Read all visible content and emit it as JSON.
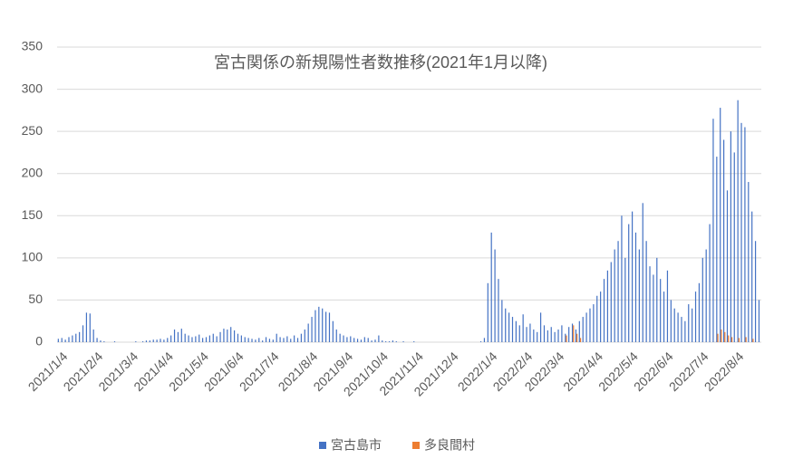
{
  "chart_data": {
    "type": "bar",
    "title": "宮古関係の新規陽性者数推移(2021年1月以降)",
    "categories": [
      null,
      "2021/1/4",
      null,
      null,
      null,
      null,
      null,
      null,
      null,
      null,
      null,
      "2021/2/4",
      null,
      null,
      null,
      null,
      null,
      null,
      null,
      null,
      null,
      "2021/3/4",
      null,
      null,
      null,
      null,
      null,
      null,
      null,
      null,
      null,
      "2021/4/4",
      null,
      null,
      null,
      null,
      null,
      null,
      null,
      null,
      null,
      "2021/5/4",
      null,
      null,
      null,
      null,
      null,
      null,
      null,
      null,
      null,
      "2021/6/4",
      null,
      null,
      null,
      null,
      null,
      null,
      null,
      null,
      null,
      "2021/7/4",
      null,
      null,
      null,
      null,
      null,
      null,
      null,
      null,
      null,
      null,
      "2021/8/4",
      null,
      null,
      null,
      null,
      null,
      null,
      null,
      null,
      null,
      "2021/9/4",
      null,
      null,
      null,
      null,
      null,
      null,
      null,
      null,
      null,
      "2021/10/4",
      null,
      null,
      null,
      null,
      null,
      null,
      null,
      null,
      null,
      "2021/11/4",
      null,
      null,
      null,
      null,
      null,
      null,
      null,
      null,
      null,
      "2021/12/4",
      null,
      null,
      null,
      null,
      null,
      null,
      null,
      null,
      null,
      null,
      "2022/1/4",
      null,
      null,
      null,
      null,
      null,
      null,
      null,
      null,
      null,
      "2022/2/4",
      null,
      null,
      null,
      null,
      null,
      null,
      null,
      null,
      "2022/3/4",
      null,
      null,
      null,
      null,
      null,
      null,
      null,
      null,
      null,
      null,
      "2022/4/4",
      null,
      null,
      null,
      null,
      null,
      null,
      null,
      null,
      null,
      "2022/5/4",
      null,
      null,
      null,
      null,
      null,
      null,
      null,
      null,
      null,
      "2022/6/4",
      null,
      null,
      null,
      null,
      null,
      null,
      null,
      null,
      null,
      "2022/7/4",
      null,
      null,
      null,
      null,
      null,
      null,
      null,
      null,
      null,
      "2022/8/4",
      null,
      null,
      null,
      null,
      null,
      null
    ],
    "series": [
      {
        "name": "宮古島市",
        "color": "#4472c4",
        "values": [
          4,
          5,
          3,
          6,
          8,
          10,
          12,
          20,
          35,
          34,
          15,
          5,
          2,
          1,
          0,
          0,
          1,
          0,
          0,
          0,
          0,
          0,
          1,
          0,
          1,
          2,
          2,
          3,
          3,
          4,
          3,
          5,
          8,
          15,
          12,
          16,
          10,
          8,
          6,
          7,
          9,
          5,
          6,
          8,
          10,
          7,
          12,
          16,
          15,
          18,
          14,
          10,
          8,
          6,
          5,
          4,
          3,
          5,
          2,
          6,
          4,
          3,
          10,
          6,
          5,
          7,
          4,
          8,
          5,
          10,
          15,
          22,
          30,
          38,
          42,
          40,
          36,
          35,
          25,
          15,
          10,
          8,
          6,
          7,
          5,
          4,
          3,
          6,
          5,
          2,
          3,
          8,
          2,
          1,
          1,
          2,
          1,
          0,
          1,
          0,
          0,
          1,
          0,
          0,
          0,
          0,
          0,
          0,
          0,
          0,
          0,
          0,
          0,
          0,
          0,
          0,
          0,
          0,
          0,
          0,
          1,
          5,
          70,
          130,
          110,
          75,
          50,
          40,
          35,
          30,
          25,
          20,
          33,
          18,
          22,
          15,
          12,
          35,
          20,
          14,
          18,
          12,
          15,
          20,
          10,
          18,
          22,
          15,
          25,
          30,
          35,
          40,
          45,
          55,
          60,
          75,
          85,
          95,
          110,
          120,
          150,
          100,
          140,
          155,
          130,
          110,
          165,
          120,
          90,
          80,
          100,
          75,
          60,
          85,
          50,
          40,
          35,
          30,
          25,
          45,
          40,
          60,
          70,
          100,
          110,
          140,
          265,
          220,
          278,
          240,
          180,
          250,
          225,
          287,
          260,
          255,
          190,
          155,
          120,
          50
        ]
      },
      {
        "name": "多良間村",
        "color": "#ed7d31",
        "values": [
          0,
          0,
          0,
          0,
          0,
          0,
          0,
          0,
          0,
          0,
          0,
          0,
          0,
          0,
          0,
          0,
          0,
          0,
          0,
          0,
          0,
          0,
          0,
          0,
          0,
          0,
          0,
          0,
          0,
          0,
          0,
          0,
          0,
          0,
          0,
          0,
          0,
          0,
          0,
          0,
          0,
          0,
          0,
          0,
          0,
          0,
          0,
          0,
          0,
          0,
          0,
          0,
          0,
          0,
          0,
          0,
          0,
          0,
          0,
          0,
          0,
          0,
          0,
          0,
          0,
          0,
          0,
          0,
          0,
          0,
          0,
          0,
          0,
          0,
          0,
          0,
          0,
          0,
          0,
          0,
          0,
          0,
          0,
          0,
          0,
          0,
          0,
          0,
          0,
          0,
          0,
          0,
          0,
          0,
          0,
          0,
          0,
          0,
          0,
          0,
          0,
          0,
          0,
          0,
          0,
          0,
          0,
          0,
          0,
          0,
          0,
          0,
          0,
          0,
          0,
          0,
          0,
          0,
          0,
          0,
          0,
          0,
          0,
          0,
          0,
          0,
          0,
          0,
          0,
          0,
          0,
          0,
          0,
          0,
          0,
          0,
          0,
          0,
          0,
          0,
          0,
          0,
          0,
          0,
          8,
          0,
          20,
          10,
          5,
          0,
          0,
          0,
          0,
          0,
          0,
          0,
          0,
          0,
          0,
          0,
          0,
          0,
          0,
          0,
          0,
          0,
          0,
          0,
          0,
          0,
          0,
          0,
          0,
          0,
          0,
          0,
          0,
          0,
          0,
          0,
          0,
          0,
          0,
          0,
          0,
          0,
          0,
          10,
          15,
          12,
          8,
          6,
          0,
          5,
          0,
          6,
          0,
          4,
          0,
          0
        ]
      }
    ],
    "ylim": [
      0,
      350
    ],
    "yticks": [
      0,
      50,
      100,
      150,
      200,
      250,
      300,
      350
    ],
    "grid": true,
    "legend": "bottom"
  }
}
